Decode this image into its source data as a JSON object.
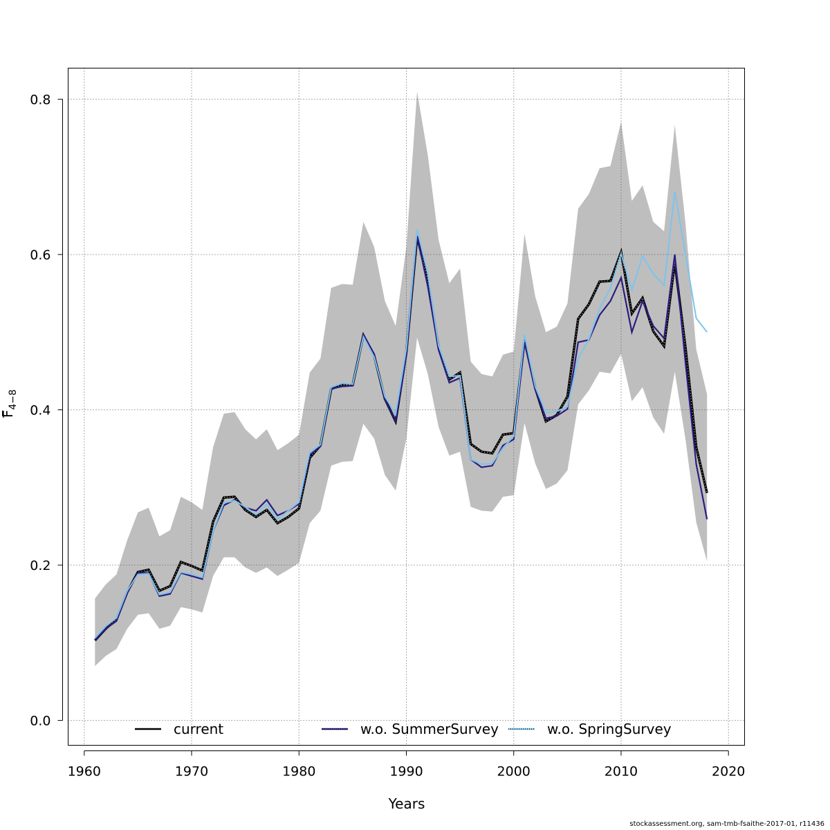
{
  "chart_data": {
    "type": "line",
    "xlabel": "Years",
    "ylabel_main": "F",
    "ylabel_sub": "4−8",
    "xlim": [
      1958.5,
      2021.5
    ],
    "ylim": [
      -0.032,
      0.84
    ],
    "xticks": [
      1960,
      1970,
      1980,
      1990,
      2000,
      2010,
      2020
    ],
    "yticks": [
      0.0,
      0.2,
      0.4,
      0.6,
      0.8
    ],
    "ytick_labels": [
      "0.0",
      "0.2",
      "0.4",
      "0.6",
      "0.8"
    ],
    "grid": true,
    "legend_position": "bottom",
    "x": [
      1961,
      1962,
      1963,
      1964,
      1965,
      1966,
      1967,
      1968,
      1969,
      1970,
      1971,
      1972,
      1973,
      1974,
      1975,
      1976,
      1977,
      1978,
      1979,
      1980,
      1981,
      1982,
      1983,
      1984,
      1985,
      1986,
      1987,
      1988,
      1989,
      1990,
      1991,
      1992,
      1993,
      1994,
      1995,
      1996,
      1997,
      1998,
      1999,
      2000,
      2001,
      2002,
      2003,
      2004,
      2005,
      2006,
      2007,
      2008,
      2009,
      2010,
      2011,
      2012,
      2013,
      2014,
      2015,
      2016,
      2017,
      2018
    ],
    "ci_upper": [
      0.157,
      0.175,
      0.188,
      0.232,
      0.268,
      0.274,
      0.237,
      0.245,
      0.288,
      0.281,
      0.271,
      0.352,
      0.395,
      0.397,
      0.375,
      0.362,
      0.375,
      0.348,
      0.357,
      0.368,
      0.448,
      0.466,
      0.557,
      0.562,
      0.561,
      0.642,
      0.61,
      0.54,
      0.508,
      0.61,
      0.81,
      0.728,
      0.619,
      0.563,
      0.582,
      0.462,
      0.446,
      0.443,
      0.471,
      0.475,
      0.627,
      0.546,
      0.5,
      0.507,
      0.537,
      0.659,
      0.678,
      0.711,
      0.714,
      0.771,
      0.669,
      0.689,
      0.642,
      0.63,
      0.767,
      0.64,
      0.478,
      0.42
    ],
    "ci_lower": [
      0.07,
      0.083,
      0.092,
      0.118,
      0.136,
      0.138,
      0.118,
      0.122,
      0.146,
      0.143,
      0.139,
      0.186,
      0.21,
      0.21,
      0.197,
      0.19,
      0.197,
      0.186,
      0.194,
      0.203,
      0.254,
      0.27,
      0.328,
      0.333,
      0.334,
      0.382,
      0.363,
      0.316,
      0.296,
      0.363,
      0.493,
      0.446,
      0.378,
      0.341,
      0.346,
      0.275,
      0.27,
      0.269,
      0.288,
      0.29,
      0.383,
      0.331,
      0.298,
      0.305,
      0.322,
      0.407,
      0.425,
      0.449,
      0.447,
      0.472,
      0.411,
      0.429,
      0.39,
      0.369,
      0.449,
      0.362,
      0.255,
      0.205
    ],
    "series": [
      {
        "name": "current",
        "color": "#000000",
        "dash": "solid",
        "values": [
          0.103,
          0.118,
          0.13,
          0.165,
          0.191,
          0.194,
          0.167,
          0.173,
          0.204,
          0.199,
          0.193,
          0.256,
          0.287,
          0.288,
          0.271,
          0.262,
          0.271,
          0.254,
          0.262,
          0.273,
          0.338,
          0.354,
          0.427,
          0.432,
          0.432,
          0.496,
          0.47,
          0.414,
          0.385,
          0.474,
          0.623,
          0.568,
          0.48,
          0.439,
          0.448,
          0.356,
          0.346,
          0.344,
          0.368,
          0.37,
          0.49,
          0.428,
          0.385,
          0.393,
          0.417,
          0.517,
          0.536,
          0.565,
          0.566,
          0.603,
          0.524,
          0.544,
          0.501,
          0.482,
          0.59,
          0.48,
          0.352,
          0.293
        ]
      },
      {
        "name": "w.o. SummerSurvey",
        "color": "#2b1c80",
        "dash": "dotted",
        "values": [
          0.103,
          0.118,
          0.128,
          0.164,
          0.19,
          0.19,
          0.16,
          0.163,
          0.19,
          0.186,
          0.182,
          0.244,
          0.277,
          0.284,
          0.274,
          0.27,
          0.284,
          0.264,
          0.27,
          0.279,
          0.342,
          0.353,
          0.427,
          0.43,
          0.431,
          0.497,
          0.472,
          0.413,
          0.386,
          0.47,
          0.624,
          0.559,
          0.477,
          0.435,
          0.441,
          0.336,
          0.326,
          0.328,
          0.354,
          0.362,
          0.487,
          0.426,
          0.389,
          0.392,
          0.401,
          0.487,
          0.49,
          0.522,
          0.54,
          0.57,
          0.5,
          0.54,
          0.508,
          0.492,
          0.6,
          0.46,
          0.33,
          0.259
        ]
      },
      {
        "name": "w.o. SpringSurvey",
        "color": "#7ec3ec",
        "dash": "dotted",
        "values": [
          0.106,
          0.121,
          0.132,
          0.167,
          0.188,
          0.189,
          0.162,
          0.165,
          0.191,
          0.188,
          0.184,
          0.244,
          0.28,
          0.283,
          0.275,
          0.265,
          0.278,
          0.259,
          0.27,
          0.281,
          0.345,
          0.355,
          0.429,
          0.434,
          0.433,
          0.494,
          0.468,
          0.417,
          0.394,
          0.479,
          0.632,
          0.575,
          0.483,
          0.443,
          0.444,
          0.336,
          0.33,
          0.331,
          0.351,
          0.366,
          0.497,
          0.43,
          0.396,
          0.398,
          0.404,
          0.466,
          0.491,
          0.53,
          0.557,
          0.601,
          0.554,
          0.598,
          0.575,
          0.56,
          0.681,
          0.6,
          0.518,
          0.5
        ]
      }
    ]
  },
  "footer_text": "stockassessment.org, sam-tmb-fsaithe-2017-01, r11436"
}
